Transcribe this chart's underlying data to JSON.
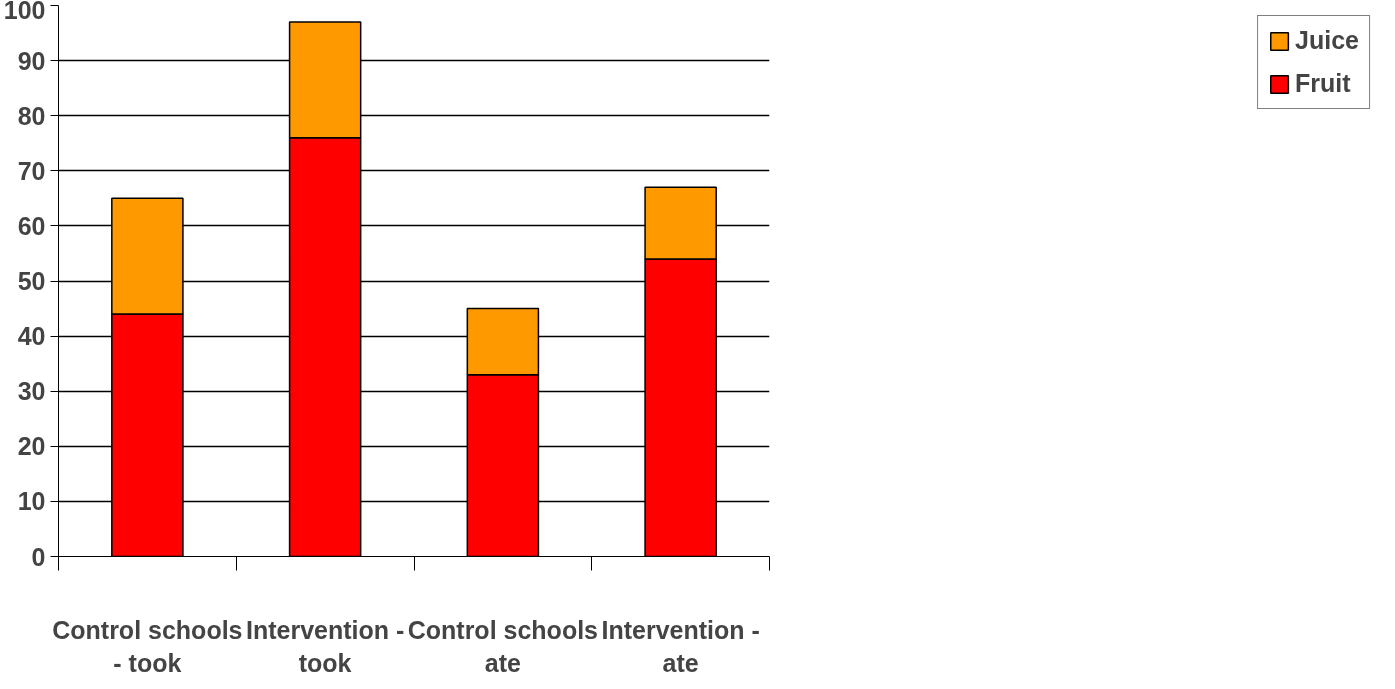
{
  "chart_data": {
    "type": "bar",
    "stacked": true,
    "categories": [
      "Control schools - took",
      "Intervention - took",
      "Control schools ate",
      "Intervention - ate"
    ],
    "series": [
      {
        "name": "Fruit",
        "color": "#ff0000",
        "values": [
          44,
          76,
          33,
          54
        ]
      },
      {
        "name": "Juice",
        "color": "#ff9900",
        "values": [
          21,
          21,
          12,
          13
        ]
      }
    ],
    "ylim": [
      0,
      100
    ],
    "yticks": [
      0,
      10,
      20,
      30,
      40,
      50,
      60,
      70,
      80,
      90,
      100
    ],
    "grid": "y",
    "legend": "right"
  }
}
